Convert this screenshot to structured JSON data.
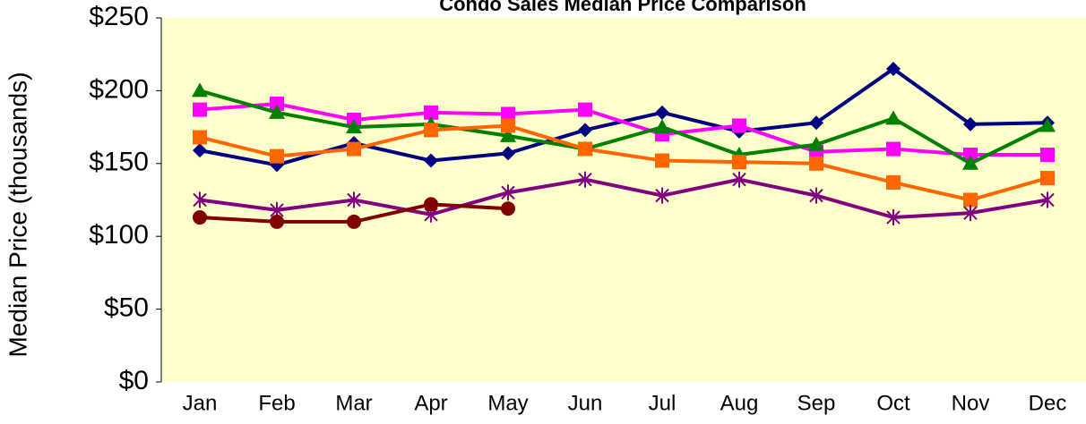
{
  "chart_data": {
    "type": "line",
    "title": "Condo Sales Median Price Comparison",
    "y_label": "Median Price (thousands)",
    "categories": [
      "Jan",
      "Feb",
      "Mar",
      "Apr",
      "May",
      "Jun",
      "Jul",
      "Aug",
      "Sep",
      "Oct",
      "Nov",
      "Dec"
    ],
    "ylim": [
      0,
      250
    ],
    "yticks": [
      {
        "value": 0,
        "label": "$0"
      },
      {
        "value": 50,
        "label": "$50"
      },
      {
        "value": 100,
        "label": "$100"
      },
      {
        "value": 150,
        "label": "$150"
      },
      {
        "value": 200,
        "label": "$200"
      },
      {
        "value": 250,
        "label": "$250"
      }
    ],
    "plot_background": "#ffffcc",
    "series": [
      {
        "color": "#000080",
        "marker": "diamond",
        "values": [
          159,
          149,
          164,
          152,
          157,
          173,
          185,
          172,
          178,
          215,
          177,
          178
        ]
      },
      {
        "color": "#ff00ff",
        "marker": "square",
        "values": [
          187,
          191,
          180,
          185,
          184,
          187,
          170,
          176,
          158,
          160,
          156,
          156
        ]
      },
      {
        "color": "#008000",
        "marker": "triangle",
        "values": [
          200,
          185,
          175,
          177,
          169,
          160,
          175,
          156,
          163,
          181,
          150,
          176
        ]
      },
      {
        "color": "#ff6600",
        "marker": "square",
        "values": [
          168,
          155,
          160,
          173,
          176,
          160,
          152,
          151,
          150,
          137,
          125,
          140
        ]
      },
      {
        "color": "#800080",
        "marker": "star",
        "values": [
          125,
          118,
          125,
          115,
          130,
          139,
          128,
          139,
          128,
          113,
          116,
          125
        ]
      },
      {
        "color": "#800000",
        "marker": "circle",
        "values": [
          113,
          110,
          110,
          122,
          119,
          null,
          null,
          null,
          null,
          null,
          null,
          null
        ]
      }
    ]
  }
}
